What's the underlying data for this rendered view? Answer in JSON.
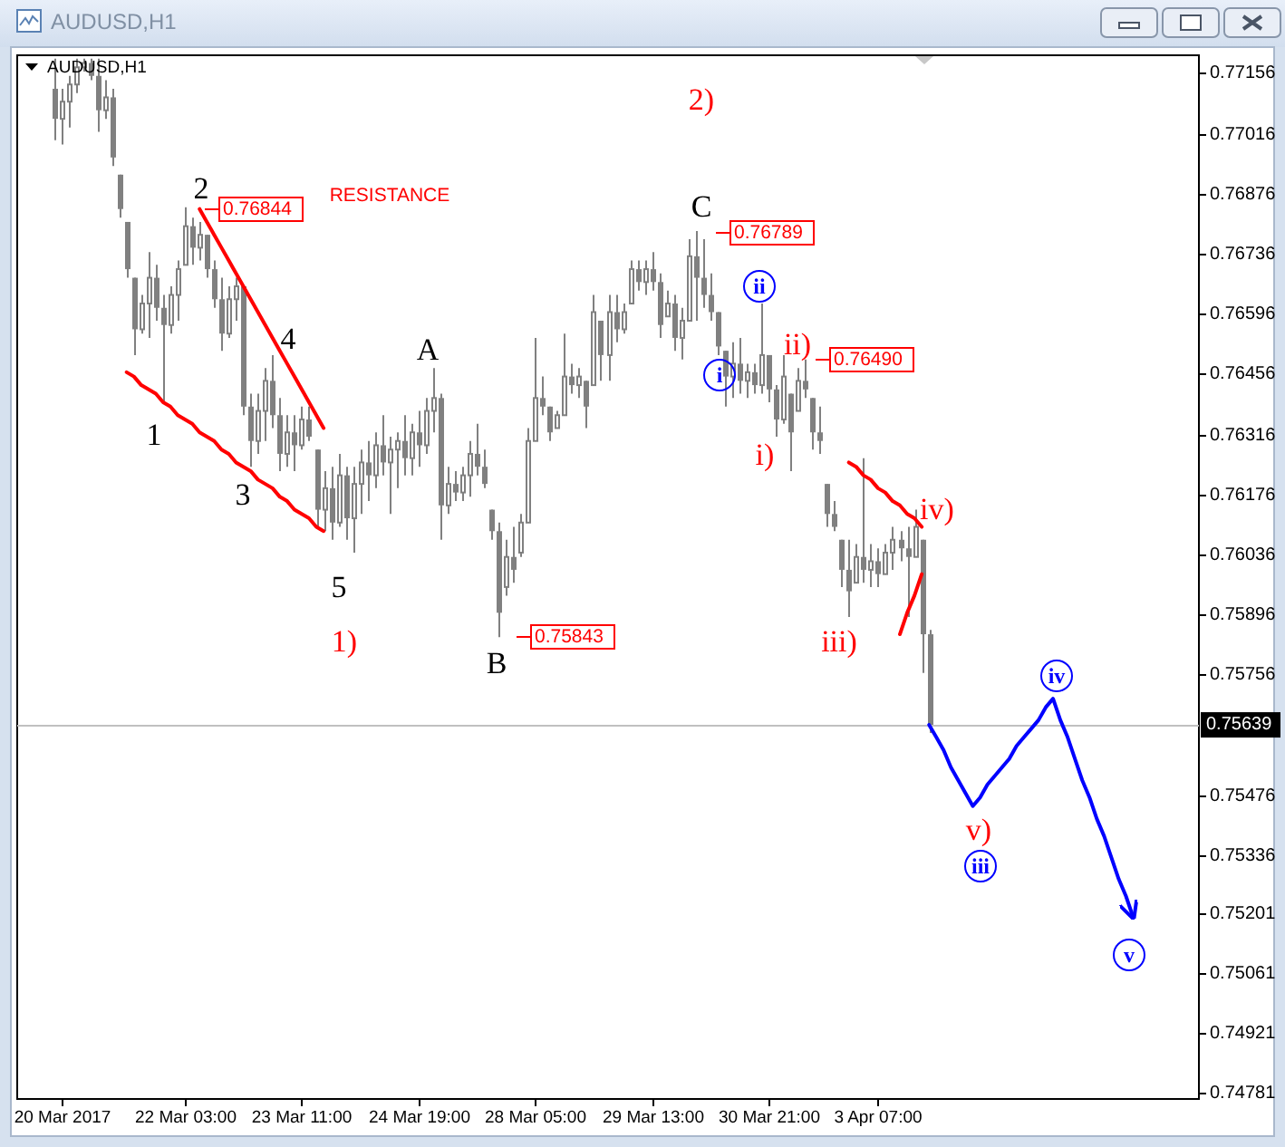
{
  "chart_data": {
    "type": "candlestick",
    "title": "AUDUSD,H1",
    "subtitle": "AUDUSD,H1",
    "color": "#808080",
    "ylim": [
      0.74768,
      0.77198
    ],
    "yticks": [
      0.77156,
      0.77016,
      0.76876,
      0.76736,
      0.76596,
      0.76456,
      0.76316,
      0.76176,
      0.76036,
      0.75896,
      0.75756,
      0.75476,
      0.75336,
      0.75201,
      0.75061,
      0.74921,
      0.74781
    ],
    "categories": [
      null,
      null,
      null,
      null,
      null,
      null,
      "20 Mar 2017",
      null,
      null,
      null,
      null,
      null,
      null,
      null,
      null,
      null,
      null,
      null,
      null,
      null,
      null,
      null,
      null,
      "22 Mar 03:00",
      null,
      null,
      null,
      null,
      null,
      null,
      null,
      null,
      null,
      null,
      null,
      null,
      null,
      null,
      null,
      "23 Mar 11:00",
      null,
      null,
      null,
      null,
      null,
      null,
      null,
      null,
      null,
      null,
      null,
      null,
      null,
      null,
      null,
      "24 Mar 19:00",
      null,
      null,
      null,
      null,
      null,
      null,
      null,
      null,
      null,
      null,
      null,
      null,
      null,
      null,
      null,
      "28 Mar 05:00",
      null,
      null,
      null,
      null,
      null,
      null,
      null,
      null,
      null,
      null,
      null,
      null,
      null,
      null,
      null,
      "29 Mar 13:00",
      null,
      null,
      null,
      null,
      null,
      null,
      null,
      null,
      null,
      null,
      null,
      null,
      null,
      null,
      null,
      "30 Mar 21:00",
      null,
      null,
      null,
      null,
      null,
      null,
      null,
      null,
      null,
      null,
      null,
      null,
      null,
      null,
      "3 Apr 07:00",
      null,
      null,
      null,
      null,
      null,
      null,
      null,
      null,
      null,
      null,
      null,
      null,
      null,
      null,
      null,
      null,
      null,
      null,
      null,
      null,
      null,
      null,
      null,
      null,
      null,
      null,
      null,
      null,
      null,
      null,
      null,
      null,
      null,
      null,
      null,
      null,
      null,
      null,
      null,
      null,
      null,
      null,
      null
    ],
    "ohlc": [
      null,
      null,
      null,
      null,
      null,
      [
        0.7712,
        0.7719,
        0.77,
        0.7705
      ],
      [
        0.7705,
        0.7712,
        0.7699,
        0.7709
      ],
      [
        0.7709,
        0.7715,
        0.7703,
        0.7713
      ],
      [
        0.7713,
        0.7719,
        0.7711,
        0.7717
      ],
      [
        0.7717,
        0.7719,
        0.7716,
        0.7718
      ],
      [
        0.7718,
        0.7719,
        0.7714,
        0.7715
      ],
      [
        0.7715,
        0.7719,
        0.7702,
        0.7707
      ],
      [
        0.7707,
        0.7714,
        0.7705,
        0.771
      ],
      [
        0.771,
        0.7712,
        0.7694,
        0.7696
      ],
      [
        0.7692,
        0.7692,
        0.7682,
        0.7684
      ],
      [
        0.7681,
        0.7681,
        0.7668,
        0.767
      ],
      [
        0.7668,
        0.7668,
        0.765,
        0.7656
      ],
      [
        0.7656,
        0.7664,
        0.7655,
        0.7662
      ],
      [
        0.7662,
        0.7674,
        0.7654,
        0.7668
      ],
      [
        0.7668,
        0.7671,
        0.7658,
        0.7661
      ],
      [
        0.7661,
        0.7664,
        0.7639,
        0.7657
      ],
      [
        0.7657,
        0.7666,
        0.7655,
        0.7664
      ],
      [
        0.7664,
        0.7672,
        0.7658,
        0.767
      ],
      [
        0.7671,
        0.76844,
        0.7671,
        0.768
      ],
      [
        0.768,
        0.7682,
        0.7671,
        0.7675
      ],
      [
        0.7675,
        0.7681,
        0.7672,
        0.7678
      ],
      [
        0.7678,
        0.7678,
        0.7668,
        0.767
      ],
      [
        0.767,
        0.7672,
        0.7661,
        0.7663
      ],
      [
        0.7663,
        0.7668,
        0.7651,
        0.7655
      ],
      [
        0.7655,
        0.7666,
        0.7654,
        0.7663
      ],
      [
        0.7663,
        0.7668,
        0.7658,
        0.7666
      ],
      [
        0.7666,
        0.7666,
        0.7636,
        0.7638
      ],
      [
        0.7638,
        0.7641,
        0.7624,
        0.763
      ],
      [
        0.763,
        0.7641,
        0.7627,
        0.7637
      ],
      [
        0.7637,
        0.7647,
        0.763,
        0.7644
      ],
      [
        0.7644,
        0.765,
        0.7633,
        0.7636
      ],
      [
        0.7636,
        0.764,
        0.7623,
        0.7627
      ],
      [
        0.7627,
        0.7636,
        0.7624,
        0.7632
      ],
      [
        0.7632,
        0.7636,
        0.7623,
        0.7629
      ],
      [
        0.7629,
        0.7638,
        0.7628,
        0.7635
      ],
      [
        0.7635,
        0.7638,
        0.763,
        0.7631
      ],
      [
        0.7628,
        0.7628,
        0.761,
        0.7614
      ],
      [
        0.7614,
        0.7623,
        0.7609,
        0.7619
      ],
      [
        0.7619,
        0.7624,
        0.7607,
        0.7611
      ],
      [
        0.7611,
        0.7627,
        0.761,
        0.7622
      ],
      [
        0.7622,
        0.7624,
        0.7607,
        0.7612
      ],
      [
        0.7612,
        0.7624,
        0.7604,
        0.762
      ],
      [
        0.762,
        0.7628,
        0.7613,
        0.7625
      ],
      [
        0.7625,
        0.763,
        0.7616,
        0.7622
      ],
      [
        0.7622,
        0.7632,
        0.7619,
        0.7629
      ],
      [
        0.7629,
        0.7636,
        0.7622,
        0.7625
      ],
      [
        0.7625,
        0.7631,
        0.7613,
        0.7628
      ],
      [
        0.7628,
        0.7632,
        0.7619,
        0.763
      ],
      [
        0.763,
        0.7636,
        0.7622,
        0.7626
      ],
      [
        0.7626,
        0.7634,
        0.7622,
        0.7632
      ],
      [
        0.7632,
        0.7637,
        0.7624,
        0.7629
      ],
      [
        0.7629,
        0.764,
        0.7627,
        0.7637
      ],
      [
        0.7637,
        0.7647,
        0.7632,
        0.764
      ],
      [
        0.764,
        0.7641,
        0.7607,
        0.7615
      ],
      [
        0.7615,
        0.7624,
        0.7613,
        0.762
      ],
      [
        0.762,
        0.7623,
        0.7616,
        0.7618
      ],
      [
        0.7618,
        0.7624,
        0.7616,
        0.7622
      ],
      [
        0.7622,
        0.763,
        0.7617,
        0.7627
      ],
      [
        0.7627,
        0.7634,
        0.7622,
        0.7624
      ],
      [
        0.7624,
        0.7628,
        0.7619,
        0.762
      ],
      [
        0.7614,
        0.7614,
        0.7607,
        0.7609
      ],
      [
        0.7609,
        0.7611,
        0.75843,
        0.759
      ],
      [
        0.7596,
        0.7607,
        0.7594,
        0.7603
      ],
      [
        0.7603,
        0.761,
        0.7597,
        0.76
      ],
      [
        0.7604,
        0.7613,
        0.7603,
        0.7611
      ],
      [
        0.7611,
        0.7633,
        0.7611,
        0.763
      ],
      [
        0.763,
        0.7654,
        0.763,
        0.764
      ],
      [
        0.764,
        0.7645,
        0.7636,
        0.7638
      ],
      [
        0.7638,
        0.7638,
        0.763,
        0.7632
      ],
      [
        0.7633,
        0.7637,
        0.7633,
        0.7636
      ],
      [
        0.7636,
        0.7655,
        0.7636,
        0.7645
      ],
      [
        0.7645,
        0.7648,
        0.7641,
        0.7643
      ],
      [
        0.7643,
        0.7647,
        0.764,
        0.7645
      ],
      [
        0.7644,
        0.7644,
        0.7633,
        0.7638
      ],
      [
        0.7643,
        0.7664,
        0.7643,
        0.766
      ],
      [
        0.7658,
        0.7658,
        0.7644,
        0.765
      ],
      [
        0.765,
        0.7664,
        0.7644,
        0.766
      ],
      [
        0.766,
        0.7664,
        0.7653,
        0.7656
      ],
      [
        0.7656,
        0.7662,
        0.7655,
        0.766
      ],
      [
        0.7662,
        0.7672,
        0.7662,
        0.767
      ],
      [
        0.767,
        0.7672,
        0.7665,
        0.7667
      ],
      [
        0.7667,
        0.7672,
        0.7664,
        0.767
      ],
      [
        0.767,
        0.7674,
        0.7665,
        0.7667
      ],
      [
        0.7667,
        0.7669,
        0.7654,
        0.7657
      ],
      [
        0.7659,
        0.7665,
        0.7659,
        0.7662
      ],
      [
        0.7662,
        0.7664,
        0.7651,
        0.7654
      ],
      [
        0.7654,
        0.7661,
        0.7649,
        0.7658
      ],
      [
        0.7658,
        0.7677,
        0.7658,
        0.7673
      ],
      [
        0.7673,
        0.76789,
        0.7658,
        0.7668
      ],
      [
        0.7668,
        0.7677,
        0.7661,
        0.7664
      ],
      [
        0.7664,
        0.7669,
        0.7658,
        0.766
      ],
      [
        0.766,
        0.766,
        0.765,
        0.7652
      ],
      [
        0.7651,
        0.7651,
        0.7638,
        0.7645
      ],
      [
        0.7645,
        0.7653,
        0.764,
        0.7648
      ],
      [
        0.7648,
        0.7654,
        0.7641,
        0.7644
      ],
      [
        0.7644,
        0.7648,
        0.764,
        0.7646
      ],
      [
        0.7646,
        0.7648,
        0.7641,
        0.7643
      ],
      [
        0.7643,
        0.7662,
        0.7641,
        0.765
      ],
      [
        0.765,
        0.765,
        0.7639,
        0.7642
      ],
      [
        0.7642,
        0.7643,
        0.7631,
        0.7635
      ],
      [
        0.7635,
        0.765,
        0.7634,
        0.7645
      ],
      [
        0.7641,
        0.7641,
        0.7623,
        0.7632
      ],
      [
        0.7637,
        0.7647,
        0.7637,
        0.7644
      ],
      [
        0.7644,
        0.7649,
        0.764,
        0.7642
      ],
      [
        0.764,
        0.764,
        0.7628,
        0.7632
      ],
      [
        0.7632,
        0.7638,
        0.7627,
        0.763
      ],
      [
        0.762,
        0.762,
        0.761,
        0.7613
      ],
      [
        0.7613,
        0.7616,
        0.7609,
        0.761
      ],
      [
        0.7607,
        0.7607,
        0.7596,
        0.76
      ],
      [
        0.76,
        0.7607,
        0.7589,
        0.7595
      ],
      [
        0.7597,
        0.7606,
        0.7597,
        0.7603
      ],
      [
        0.7603,
        0.7626,
        0.7597,
        0.76
      ],
      [
        0.76,
        0.7606,
        0.7596,
        0.7602
      ],
      [
        0.7602,
        0.7605,
        0.7596,
        0.7599
      ],
      [
        0.7599,
        0.7606,
        0.7599,
        0.7604
      ],
      [
        0.7604,
        0.761,
        0.76,
        0.7607
      ],
      [
        0.7607,
        0.7609,
        0.7602,
        0.7605
      ],
      [
        0.7605,
        0.761,
        0.7589,
        0.7603
      ],
      [
        0.7603,
        0.7614,
        0.7603,
        0.761
      ],
      [
        0.7607,
        0.7607,
        0.7576,
        0.7585
      ],
      [
        0.7585,
        0.7586,
        0.7562,
        0.75639
      ],
      null,
      null,
      null,
      null,
      null,
      null,
      null,
      null,
      null,
      null,
      null,
      null,
      null,
      null,
      null,
      null,
      null,
      null,
      null,
      null,
      null,
      null,
      null,
      null,
      null,
      null,
      null,
      null,
      null,
      null,
      null,
      null,
      null,
      null,
      null,
      null
    ],
    "series": [
      {
        "type": "line",
        "color": "#ff0000",
        "values": [
          null,
          null,
          null,
          null,
          null,
          null,
          null,
          null,
          null,
          null,
          null,
          null,
          null,
          null,
          null,
          0.7646,
          0.7645,
          0.7643,
          0.7642,
          0.7641,
          0.7639,
          0.7638,
          0.7636,
          0.7635,
          0.7634,
          0.7632,
          0.7631,
          0.763,
          0.7628,
          0.7627,
          0.7625,
          0.7624,
          0.7623,
          0.7621,
          0.762,
          0.7619,
          0.7617,
          0.7616,
          0.7614,
          0.7613,
          0.7612,
          0.761,
          0.7609,
          null,
          null,
          null,
          null,
          null,
          null,
          null,
          null,
          null,
          null,
          null,
          null,
          null,
          null,
          null,
          null,
          null,
          null,
          null,
          null,
          null,
          null,
          null,
          null,
          null,
          null,
          null,
          null,
          null,
          null,
          null,
          null,
          null,
          null,
          null,
          null,
          null,
          null,
          null,
          null,
          null,
          null,
          null,
          null,
          null,
          null,
          null,
          null,
          null,
          null,
          null,
          null,
          null,
          null,
          null,
          null,
          null,
          null,
          null,
          null,
          null,
          null,
          null,
          null,
          null,
          null,
          null,
          null,
          null,
          null,
          null,
          null,
          null,
          null,
          null,
          null,
          null,
          null,
          null,
          null,
          null,
          null,
          null,
          null,
          null,
          null,
          null,
          null,
          null,
          null,
          null,
          null,
          null,
          null,
          null,
          null,
          null,
          null,
          null,
          null,
          null,
          null,
          null,
          null,
          null,
          null,
          null,
          null,
          null,
          null,
          null,
          null,
          null,
          null,
          null,
          null,
          null,
          null,
          null
        ]
      },
      {
        "type": "line",
        "color": "#ff0000",
        "values": [
          null,
          null,
          null,
          null,
          null,
          null,
          null,
          null,
          null,
          null,
          null,
          null,
          null,
          null,
          null,
          null,
          null,
          null,
          null,
          null,
          null,
          null,
          null,
          null,
          null,
          0.7684,
          0.7681,
          0.7678,
          0.7675,
          0.7672,
          0.7669,
          0.7666,
          0.7663,
          0.766,
          0.7657,
          0.7654,
          0.7651,
          0.7648,
          0.7645,
          0.7642,
          0.7639,
          0.7636,
          0.7633,
          null,
          null,
          null,
          null,
          null,
          null,
          null,
          null,
          null,
          null,
          null,
          null,
          null,
          null,
          null,
          null,
          null,
          null,
          null,
          null,
          null,
          null,
          null,
          null,
          null,
          null,
          null,
          null,
          null,
          null,
          null,
          null,
          null,
          null,
          null,
          null,
          null,
          null,
          null,
          null,
          null,
          null,
          null,
          null,
          null,
          null,
          null,
          null,
          null,
          null,
          null,
          null,
          null,
          null,
          null,
          null,
          null,
          null,
          null,
          null,
          null,
          null,
          null,
          null,
          null,
          null,
          null,
          null,
          null,
          null,
          null,
          null,
          null,
          null,
          null,
          null,
          null,
          null,
          null,
          null,
          null,
          null,
          null,
          null,
          null,
          null,
          null,
          null,
          null,
          null,
          null,
          null,
          null,
          null,
          null,
          null,
          null,
          null,
          null,
          null,
          null,
          null,
          null,
          null,
          null,
          null,
          null,
          null,
          null,
          null,
          null,
          null,
          null,
          null,
          null,
          null,
          null,
          null,
          null
        ]
      },
      {
        "type": "line",
        "color": "#ff0000",
        "values": [
          null,
          null,
          null,
          null,
          null,
          null,
          null,
          null,
          null,
          null,
          null,
          null,
          null,
          null,
          null,
          null,
          null,
          null,
          null,
          null,
          null,
          null,
          null,
          null,
          null,
          null,
          null,
          null,
          null,
          null,
          null,
          null,
          null,
          null,
          null,
          null,
          null,
          null,
          null,
          null,
          null,
          null,
          null,
          null,
          null,
          null,
          null,
          null,
          null,
          null,
          null,
          null,
          null,
          null,
          null,
          null,
          null,
          null,
          null,
          null,
          null,
          null,
          null,
          null,
          null,
          null,
          null,
          null,
          null,
          null,
          null,
          null,
          null,
          null,
          null,
          null,
          null,
          null,
          null,
          null,
          null,
          null,
          null,
          null,
          null,
          null,
          null,
          null,
          null,
          null,
          null,
          null,
          null,
          null,
          null,
          null,
          null,
          null,
          null,
          null,
          null,
          null,
          null,
          null,
          null,
          null,
          null,
          null,
          null,
          null,
          null,
          null,
          null,
          null,
          0.7625,
          0.7624,
          0.7622,
          0.7621,
          0.7619,
          0.7618,
          0.7616,
          0.7615,
          0.7613,
          0.7612,
          0.761,
          null,
          null,
          null,
          null,
          null,
          null,
          null,
          null,
          null,
          null,
          null,
          null,
          null,
          null,
          null,
          null,
          null,
          null,
          null,
          null,
          null,
          null,
          null,
          null,
          null,
          null,
          null,
          null,
          null,
          null,
          null,
          null,
          null,
          null,
          null,
          null,
          null
        ]
      },
      {
        "type": "line",
        "color": "#ff0000",
        "values": [
          null,
          null,
          null,
          null,
          null,
          null,
          null,
          null,
          null,
          null,
          null,
          null,
          null,
          null,
          null,
          null,
          null,
          null,
          null,
          null,
          null,
          null,
          null,
          null,
          null,
          null,
          null,
          null,
          null,
          null,
          null,
          null,
          null,
          null,
          null,
          null,
          null,
          null,
          null,
          null,
          null,
          null,
          null,
          null,
          null,
          null,
          null,
          null,
          null,
          null,
          null,
          null,
          null,
          null,
          null,
          null,
          null,
          null,
          null,
          null,
          null,
          null,
          null,
          null,
          null,
          null,
          null,
          null,
          null,
          null,
          null,
          null,
          null,
          null,
          null,
          null,
          null,
          null,
          null,
          null,
          null,
          null,
          null,
          null,
          null,
          null,
          null,
          null,
          null,
          null,
          null,
          null,
          null,
          null,
          null,
          null,
          null,
          null,
          null,
          null,
          null,
          null,
          null,
          null,
          null,
          null,
          null,
          null,
          null,
          null,
          null,
          null,
          null,
          null,
          null,
          null,
          null,
          null,
          null,
          null,
          null,
          0.7585,
          0.759,
          0.7594,
          0.7599,
          null,
          null,
          null,
          null,
          null,
          null,
          null,
          null,
          null,
          null,
          null,
          null,
          null,
          null,
          null,
          null,
          null,
          null,
          null,
          null,
          null,
          null,
          null,
          null,
          null,
          null,
          null,
          null,
          null,
          null,
          null,
          null,
          null,
          null,
          null,
          null,
          null
        ]
      },
      {
        "type": "line",
        "color": "#0000ff",
        "values": [
          null,
          null,
          null,
          null,
          null,
          null,
          null,
          null,
          null,
          null,
          null,
          null,
          null,
          null,
          null,
          null,
          null,
          null,
          null,
          null,
          null,
          null,
          null,
          null,
          null,
          null,
          null,
          null,
          null,
          null,
          null,
          null,
          null,
          null,
          null,
          null,
          null,
          null,
          null,
          null,
          null,
          null,
          null,
          null,
          null,
          null,
          null,
          null,
          null,
          null,
          null,
          null,
          null,
          null,
          null,
          null,
          null,
          null,
          null,
          null,
          null,
          null,
          null,
          null,
          null,
          null,
          null,
          null,
          null,
          null,
          null,
          null,
          null,
          null,
          null,
          null,
          null,
          null,
          null,
          null,
          null,
          null,
          null,
          null,
          null,
          null,
          null,
          null,
          null,
          null,
          null,
          null,
          null,
          null,
          null,
          null,
          null,
          null,
          null,
          null,
          null,
          null,
          null,
          null,
          null,
          null,
          null,
          null,
          null,
          null,
          null,
          null,
          null,
          null,
          null,
          null,
          null,
          null,
          null,
          null,
          null,
          null,
          null,
          null,
          null,
          0.75639,
          0.7561,
          0.7558,
          0.7554,
          0.7551,
          0.7548,
          0.7545,
          0.7547,
          0.755,
          0.7552,
          0.7554,
          0.7556,
          0.7559,
          0.7561,
          0.7563,
          0.7565,
          0.7568,
          0.757,
          0.7565,
          0.7561,
          0.7556,
          0.7551,
          0.7547,
          0.7542,
          0.7538,
          0.7533,
          0.7528,
          0.7524,
          0.7519,
          null,
          null,
          null,
          null,
          null,
          null,
          null,
          null
        ]
      }
    ],
    "ref_lines": [
      {
        "axis": "y",
        "value": 0.75639,
        "label": "0.75639",
        "color": "#c0c0c0"
      }
    ],
    "annotations": [
      "1",
      {
        "text": "2",
        "y": 0.76844
      },
      "3",
      {
        "text": "4",
        "y": 0.765
      },
      "5",
      {
        "text": "A",
        "y": 0.7647
      },
      "B",
      "C",
      "1)",
      "2)",
      "i)",
      "ii)",
      "iii)",
      "iv)",
      "v)",
      "i",
      "ii",
      "iii",
      "iv",
      "v",
      "RESISTANCE",
      "0.76844",
      "0.76789",
      "0.76490",
      "0.75843"
    ]
  }
}
